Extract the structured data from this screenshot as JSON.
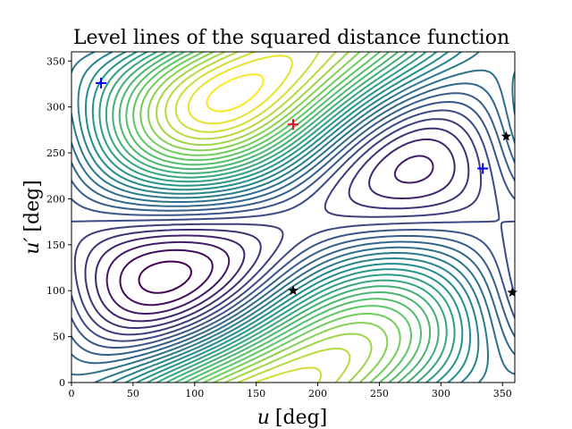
{
  "chart_data": {
    "type": "contour",
    "title": "Level lines of the squared distance function",
    "xlabel_var": "u",
    "xlabel_unit": "[deg]",
    "ylabel_var": "u′",
    "ylabel_unit": "[deg]",
    "xlim": [
      0,
      360
    ],
    "ylim": [
      0,
      360
    ],
    "xticks": [
      0,
      50,
      100,
      150,
      200,
      250,
      300,
      350
    ],
    "yticks": [
      0,
      50,
      100,
      150,
      200,
      250,
      300,
      350
    ],
    "grid": false,
    "colormap": "viridis",
    "colormap_stops": [
      "#440154",
      "#3b528b",
      "#21918c",
      "#5ec962",
      "#fde725"
    ],
    "level_count": 28,
    "markers": [
      {
        "name": "maximum",
        "symbol": "plus",
        "color": "#e8112d",
        "x": 180,
        "y": 281
      },
      {
        "name": "minimum-1",
        "symbol": "plus",
        "color": "#0000ff",
        "x": 24,
        "y": 326
      },
      {
        "name": "minimum-2",
        "symbol": "plus",
        "color": "#0000ff",
        "x": 334,
        "y": 233
      },
      {
        "name": "saddle-1",
        "symbol": "star",
        "color": "#000000",
        "x": 180,
        "y": 100
      },
      {
        "name": "saddle-2",
        "symbol": "star",
        "color": "#000000",
        "x": 353,
        "y": 268
      },
      {
        "name": "saddle-3",
        "symbol": "star",
        "color": "#000000",
        "x": 358,
        "y": 98
      }
    ]
  }
}
